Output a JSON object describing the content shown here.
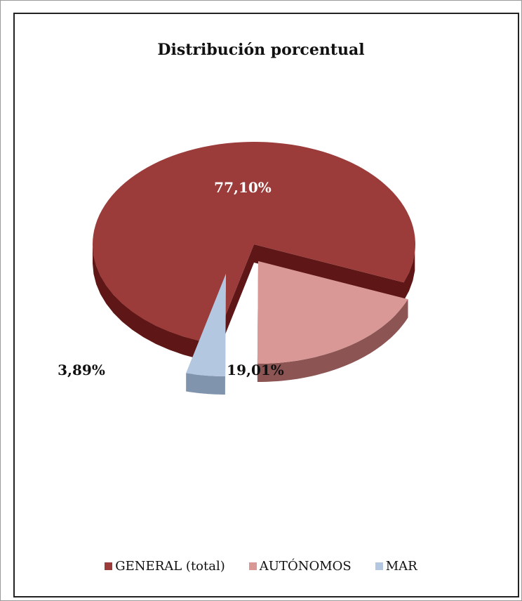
{
  "chart_data": {
    "type": "pie",
    "title": "Distribución porcentual",
    "categories": [
      "GENERAL (total)",
      "AUTÓNOMOS",
      "MAR"
    ],
    "values": [
      77.1,
      19.01,
      3.89
    ],
    "labels": [
      "77,10%",
      "19,01%",
      "3,89%"
    ],
    "colors": [
      "#9b3b3a",
      "#d99795",
      "#b4c7e1"
    ],
    "side_colors": [
      "#5e1616",
      "#8c5554",
      "#8094ad"
    ],
    "legend_position": "bottom",
    "style": "3d-exploded"
  }
}
